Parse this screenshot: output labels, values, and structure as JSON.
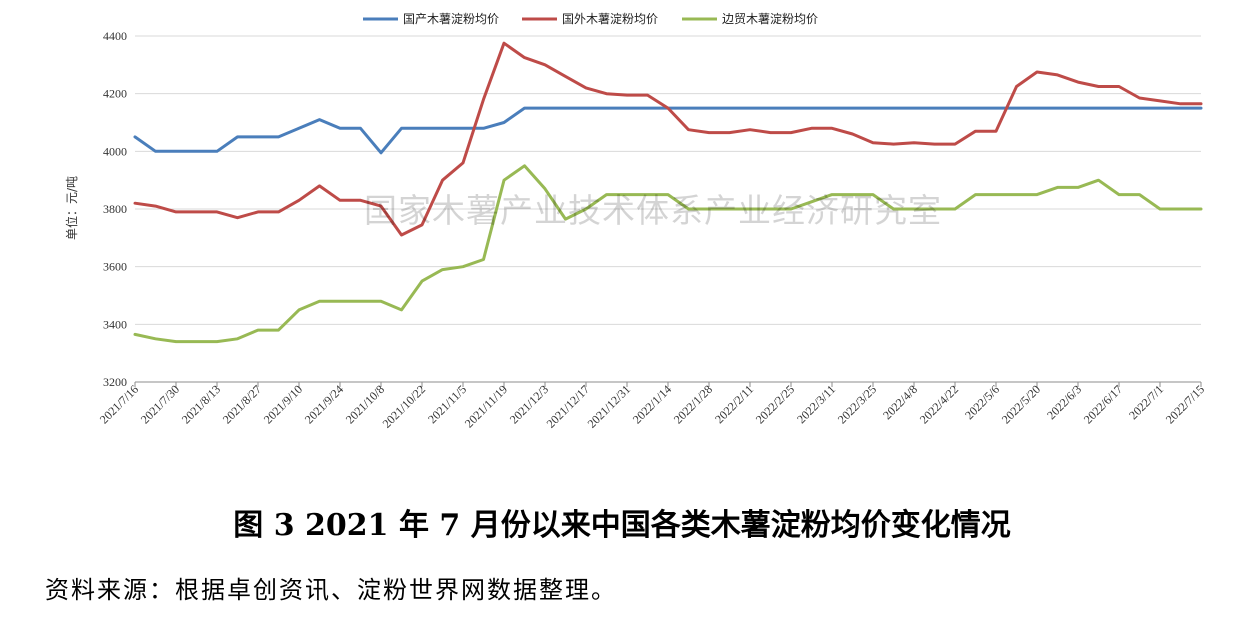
{
  "chart_data": {
    "type": "line",
    "title": "",
    "ylabel": "单位：元/吨",
    "xlabel": "",
    "ylim": [
      3200,
      4400
    ],
    "yticks": [
      3200,
      3400,
      3600,
      3800,
      4000,
      4200,
      4400
    ],
    "grid": "horizontal",
    "legend_position": "top-center",
    "watermark": "国家木薯产业技术体系产业经济研究室",
    "x_tick_labels": [
      "2021/7/16",
      "2021/7/30",
      "2021/8/13",
      "2021/8/27",
      "2021/9/10",
      "2021/9/24",
      "2021/10/8",
      "2021/10/22",
      "2021/11/5",
      "2021/11/19",
      "2021/12/3",
      "2021/12/17",
      "2021/12/31",
      "2022/1/14",
      "2022/1/28",
      "2022/2/11",
      "2022/2/25",
      "2022/3/11",
      "2022/3/25",
      "2022/4/8",
      "2022/4/22",
      "2022/5/6",
      "2022/5/20",
      "2022/6/3",
      "2022/6/17",
      "2022/7/1",
      "2022/7/15"
    ],
    "points_per_series": 53,
    "series": [
      {
        "name": "国产木薯淀粉均价",
        "color": "#4a7ebb",
        "values": [
          4050,
          4000,
          4000,
          4000,
          4000,
          4050,
          4050,
          4050,
          4080,
          4110,
          4080,
          4080,
          3995,
          4080,
          4080,
          4080,
          4080,
          4080,
          4100,
          4150,
          4150,
          4150,
          4150,
          4150,
          4150,
          4150,
          4150,
          4150,
          4150,
          4150,
          4150,
          4150,
          4150,
          4150,
          4150,
          4150,
          4150,
          4150,
          4150,
          4150,
          4150,
          4150,
          4150,
          4150,
          4150,
          4150,
          4150,
          4150,
          4150,
          4150,
          4150,
          4150,
          4150
        ]
      },
      {
        "name": "国外木薯淀粉均价",
        "color": "#be4b48",
        "values": [
          3820,
          3810,
          3790,
          3790,
          3790,
          3770,
          3790,
          3790,
          3830,
          3880,
          3830,
          3830,
          3810,
          3710,
          3745,
          3900,
          3960,
          4180,
          4375,
          4325,
          4300,
          4260,
          4220,
          4200,
          4195,
          4195,
          4150,
          4075,
          4065,
          4065,
          4075,
          4065,
          4065,
          4080,
          4080,
          4060,
          4030,
          4025,
          4030,
          4025,
          4025,
          4070,
          4070,
          4225,
          4275,
          4265,
          4240,
          4225,
          4225,
          4185,
          4175,
          4165,
          4165
        ]
      },
      {
        "name": "边贸木薯淀粉均价",
        "color": "#98b954",
        "values": [
          3365,
          3350,
          3340,
          3340,
          3340,
          3350,
          3380,
          3380,
          3450,
          3480,
          3480,
          3480,
          3480,
          3450,
          3550,
          3590,
          3600,
          3625,
          3900,
          3950,
          3870,
          3765,
          3800,
          3850,
          3850,
          3850,
          3850,
          3800,
          3800,
          3800,
          3800,
          3800,
          3800,
          3825,
          3850,
          3850,
          3850,
          3800,
          3800,
          3800,
          3800,
          3850,
          3850,
          3850,
          3850,
          3875,
          3875,
          3900,
          3850,
          3850,
          3800,
          3800,
          3800
        ]
      }
    ]
  },
  "caption": "图 3    2021 年 7 月份以来中国各类木薯淀粉均价变化情况",
  "source": "资料来源：根据卓创资讯、淀粉世界网数据整理。"
}
